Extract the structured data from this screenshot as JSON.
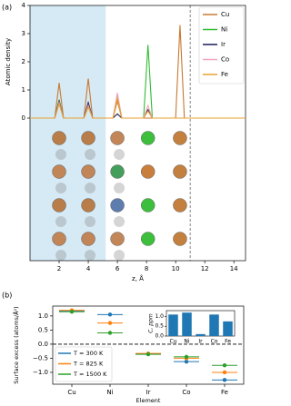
{
  "chart_data": [
    {
      "type": "line",
      "panel_label": "(a)",
      "x_label": "z, Å",
      "y_label": "Atomic density",
      "x": [
        0,
        1.7,
        2,
        2.3,
        3.7,
        4,
        4.3,
        5.7,
        6,
        6.3,
        7.8,
        8.1,
        8.4,
        10,
        10.3,
        10.6,
        14.8
      ],
      "series": [
        {
          "name": "Cu",
          "color": "#c87832",
          "values": [
            0,
            0,
            1.25,
            0,
            0,
            1.4,
            0,
            0,
            0.6,
            0,
            0,
            0,
            0,
            0,
            3.3,
            0,
            0
          ]
        },
        {
          "name": "Ni",
          "color": "#33bb33",
          "values": [
            0,
            0,
            0.65,
            0,
            0,
            0.4,
            0,
            0,
            0.85,
            0,
            0,
            2.6,
            0,
            0,
            0,
            0,
            0
          ]
        },
        {
          "name": "Ir",
          "color": "#1a1a5a",
          "values": [
            0,
            0,
            0.6,
            0,
            0,
            0.55,
            0,
            0,
            0.15,
            0,
            0,
            0.3,
            0,
            0,
            0,
            0,
            0
          ]
        },
        {
          "name": "Co",
          "color": "#f4a6b8",
          "values": [
            0,
            0,
            0.55,
            0,
            0,
            0.45,
            0,
            0,
            0.9,
            0,
            0,
            0.45,
            0,
            0,
            0,
            0,
            0
          ]
        },
        {
          "name": "Fe",
          "color": "#e8a030",
          "values": [
            0,
            0,
            0.5,
            0,
            0,
            0.4,
            0,
            0,
            0.7,
            0,
            0,
            0.25,
            0,
            0,
            0,
            0,
            0
          ]
        }
      ],
      "xlim": [
        0,
        14.8
      ],
      "ylim": [
        0,
        4
      ],
      "xticks": [
        2,
        4,
        6,
        8,
        10,
        12,
        14
      ],
      "yticks": [
        0,
        1,
        2,
        3,
        4
      ],
      "shaded_xlim": [
        0,
        5.2
      ],
      "shaded_color": "#d6eaf5",
      "dashed_x": 11,
      "legend": "upper right"
    },
    {
      "type": "scatter",
      "panel_label": "(b)",
      "x_label": "Element",
      "y_label": "Surface excess (atoms/Å²)",
      "categories": [
        "Cu",
        "Ni",
        "Ir",
        "Co",
        "Fe"
      ],
      "series": [
        {
          "name": "T = 300 K",
          "color": "#1f77b4",
          "values": [
            1.17,
            1.05,
            -0.35,
            -0.62,
            -1.27
          ]
        },
        {
          "name": "T = 825 K",
          "color": "#ff7f0e",
          "values": [
            1.2,
            0.75,
            -0.33,
            -0.5,
            -1.0
          ]
        },
        {
          "name": "T = 1500 K",
          "color": "#2ca02c",
          "values": [
            1.15,
            0.4,
            -0.36,
            -0.45,
            -0.75
          ]
        }
      ],
      "ylim": [
        -1.42,
        1.35
      ],
      "yticks": [
        {
          "value": -1,
          "label": "−1.0"
        },
        {
          "value": -0.5,
          "label": "−0.5"
        },
        {
          "value": 0,
          "label": "0.0"
        },
        0.5,
        {
          "value": 1,
          "label": "1.0"
        }
      ],
      "dashed_y": 0,
      "legend": "lower left"
    },
    {
      "type": "bar",
      "y_label": "C, ppm",
      "categories": [
        "Cu",
        "Ni",
        "Ir",
        "Co",
        "Fe"
      ],
      "values": [
        1.1,
        1.2,
        0.1,
        1.1,
        0.75
      ],
      "color": "#1f77b4",
      "ylim": [
        0,
        1.3
      ],
      "yticks": [
        {
          "value": 0,
          "label": "0.0"
        },
        0.5,
        {
          "value": 1,
          "label": "1.0"
        }
      ]
    }
  ]
}
